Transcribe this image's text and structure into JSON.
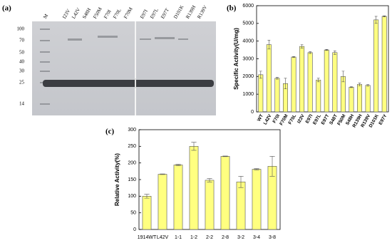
{
  "gel": {
    "panel_label": "(a)",
    "lanes": [
      "M",
      "I23V",
      "L42V",
      "S48H",
      "F50M",
      "F70I",
      "F70L",
      "F70M",
      "E97I",
      "E97L",
      "E97T",
      "D101K",
      "R139H",
      "R139V"
    ],
    "markers": [
      "100",
      "70",
      "50",
      "40",
      "30",
      "25",
      "14"
    ]
  },
  "chart_data": [
    {
      "type": "bar",
      "panel_label": "(b)",
      "y_label": "Specific Activity(U/mg)",
      "categories": [
        "WT",
        "L42V",
        "F70I",
        "F70M",
        "F70L",
        "I23V",
        "E97I",
        "E97L",
        "E97T",
        "S48T",
        "F50M",
        "S48H",
        "R139H",
        "R139V",
        "D101K",
        "E97Y"
      ],
      "series": [
        {
          "color": "#ffff80",
          "values": [
            2100,
            3800,
            1900,
            1600,
            3100,
            3700,
            3350,
            1800,
            3500,
            3350,
            2000,
            1400,
            1550,
            1500,
            5200,
            5400
          ],
          "errors": [
            200,
            250,
            50,
            300,
            30,
            100,
            50,
            100,
            30,
            100,
            300,
            30,
            80,
            50,
            200,
            30
          ]
        }
      ],
      "ylim": [
        0,
        6000
      ],
      "yticks": [
        0,
        1000,
        2000,
        3000,
        4000,
        5000,
        6000
      ]
    },
    {
      "type": "bar",
      "panel_label": "(c)",
      "y_label": "Relative Activity(%)",
      "categories": [
        "1914WT",
        "L42V",
        "1-1",
        "1-2",
        "2-2",
        "2-8",
        "3-2",
        "3-4",
        "3-8"
      ],
      "series": [
        {
          "color": "#ffff80",
          "values": [
            100,
            166,
            194,
            250,
            148,
            220,
            143,
            181,
            190
          ],
          "errors": [
            6,
            1,
            2,
            12,
            5,
            1,
            17,
            2,
            30
          ]
        }
      ],
      "ylim": [
        0,
        300
      ],
      "yticks": [
        0,
        50,
        100,
        150,
        200,
        250,
        300
      ]
    }
  ]
}
